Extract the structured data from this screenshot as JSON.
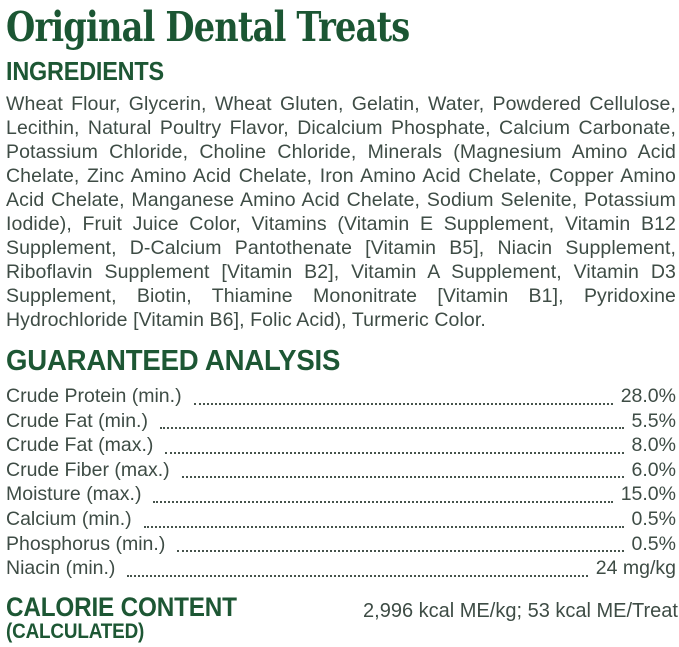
{
  "page": {
    "title": "Original Dental Treats"
  },
  "ingredients": {
    "heading": "INGREDIENTS",
    "text": "Wheat Flour, Glycerin, Wheat Gluten, Gelatin, Water, Powdered Cellulose, Lecithin, Natural Poultry Flavor, Dicalcium Phosphate, Calcium Carbonate, Potassium Chloride, Choline Chloride, Minerals (Magnesium Amino Acid Chelate, Zinc Amino Acid Chelate, Iron Amino Acid Chelate, Copper Amino Acid Chelate, Manganese Amino Acid Chelate, Sodium Selenite, Potassium Iodide), Fruit Juice Color, Vitamins (Vitamin E Supplement, Vitamin B12 Supplement, D-Calcium Pantothenate [Vitamin B5], Niacin Supplement, Riboflavin Supplement [Vitamin B2], Vitamin A Supplement, Vitamin D3 Supplement, Biotin, Thiamine Mononitrate [Vitamin B1], Pyridoxine Hydrochloride [Vitamin B6], Folic Acid), Turmeric Color."
  },
  "analysis": {
    "heading": "GUARANTEED ANALYSIS",
    "rows": [
      {
        "label": "Crude Protein (min.)",
        "value": "28.0%"
      },
      {
        "label": "Crude Fat (min.)",
        "value": "5.5%"
      },
      {
        "label": "Crude Fat (max.)",
        "value": "8.0%"
      },
      {
        "label": "Crude Fiber (max.)",
        "value": "6.0%"
      },
      {
        "label": "Moisture (max.)",
        "value": "15.0%"
      },
      {
        "label": "Calcium (min.)",
        "value": "0.5%"
      },
      {
        "label": "Phosphorus (min.)",
        "value": "0.5%"
      },
      {
        "label": "Niacin (min.)",
        "value": "24 mg/kg"
      }
    ]
  },
  "calories": {
    "heading": "CALORIE CONTENT",
    "subheading": "(CALCULATED)",
    "value": "2,996 kcal ME/kg; 53 kcal ME/Treat"
  },
  "colors": {
    "heading_green": "#1d5734",
    "body_text": "#3e4c45"
  }
}
